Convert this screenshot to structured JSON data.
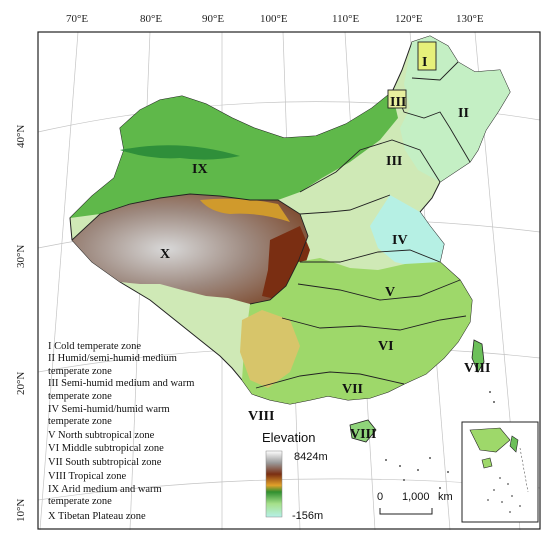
{
  "longitude_labels": [
    "70°E",
    "80°E",
    "90°E",
    "100°E",
    "110°E",
    "120°E",
    "130°E"
  ],
  "latitude_labels": [
    "40°N",
    "30°N",
    "20°N",
    "10°N"
  ],
  "zone_labels": [
    "I",
    "II",
    "III",
    "IV",
    "V",
    "VI",
    "VII",
    "VIII",
    "IX",
    "X",
    "III",
    "VIII",
    "VIII"
  ],
  "legend_items": [
    "I  Cold temperate zone",
    "II  Humid/semi-humid medium",
    "temperate zone",
    "III  Semi-humid medium and warm",
    "temperate zone",
    "IV  Semi-humid/humid warm",
    "temperate zone",
    "V  North subtropical zone",
    "VI  Middle subtropical zone",
    "VII  South subtropical zone",
    "VIII  Tropical zone",
    "IX  Arid medium and warm",
    "temperate zone",
    "X  Tibetan Plateau zone"
  ],
  "elevation": {
    "title": "Elevation",
    "max": "8424m",
    "min": "-156m"
  },
  "scale": {
    "zero": "0",
    "distance": "1,000",
    "unit": "km"
  },
  "colors": {
    "lowland": "#aeeeda",
    "plain": "#cdebb4",
    "green": "#4caa3a",
    "yellow": "#e0c05a",
    "brown": "#8a3a18",
    "grey": "#9a9a9a",
    "white": "#f4f4f4"
  }
}
